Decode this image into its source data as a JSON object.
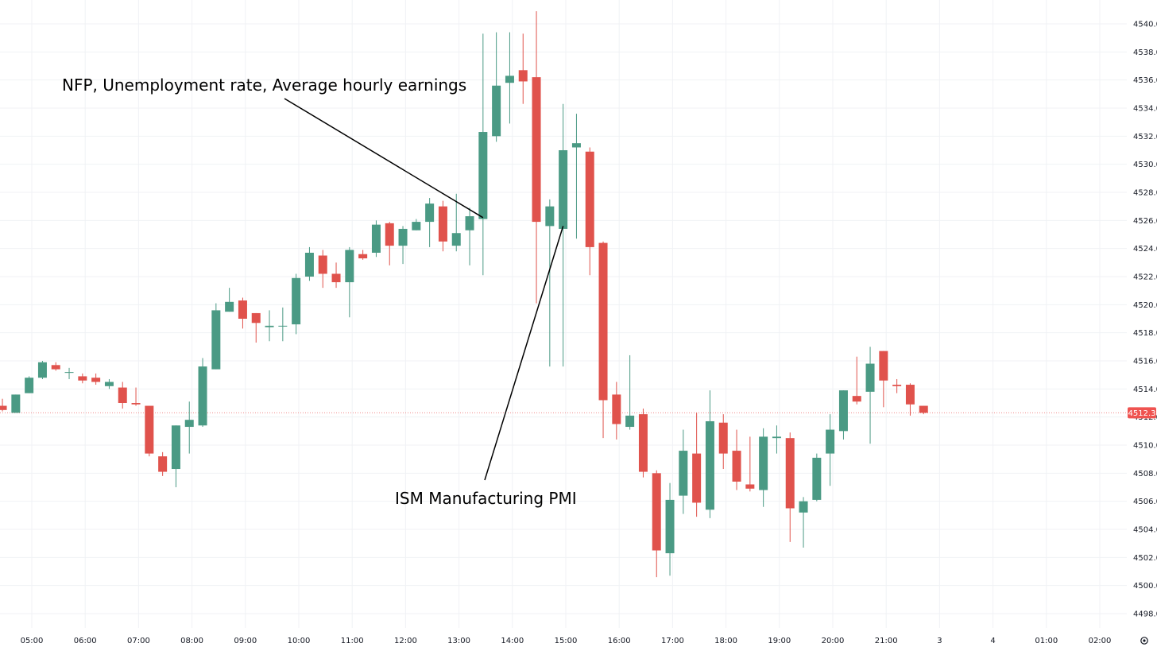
{
  "chart_data": {
    "type": "candlestick",
    "title": "",
    "xlabel": "",
    "ylabel": "",
    "ylim": [
      4497,
      4541
    ],
    "y_ticks": [
      "4498.0",
      "4500.0",
      "4502.0",
      "4504.0",
      "4506.0",
      "4508.0",
      "4510.0",
      "4512.0",
      "4514.0",
      "4516.0",
      "4518.0",
      "4520.0",
      "4522.0",
      "4524.0",
      "4526.0",
      "4528.0",
      "4530.0",
      "4532.0",
      "4534.0",
      "4536.0",
      "4538.0",
      "4540.0"
    ],
    "x_ticks": [
      {
        "label": "05:00",
        "hour": 5
      },
      {
        "label": "06:00",
        "hour": 6
      },
      {
        "label": "07:00",
        "hour": 7
      },
      {
        "label": "08:00",
        "hour": 8
      },
      {
        "label": "09:00",
        "hour": 9
      },
      {
        "label": "10:00",
        "hour": 10
      },
      {
        "label": "11:00",
        "hour": 11
      },
      {
        "label": "12:00",
        "hour": 12
      },
      {
        "label": "13:00",
        "hour": 13
      },
      {
        "label": "14:00",
        "hour": 14
      },
      {
        "label": "15:00",
        "hour": 15
      },
      {
        "label": "16:00",
        "hour": 16
      },
      {
        "label": "17:00",
        "hour": 17
      },
      {
        "label": "18:00",
        "hour": 18
      },
      {
        "label": "19:00",
        "hour": 19
      },
      {
        "label": "20:00",
        "hour": 20
      },
      {
        "label": "21:00",
        "hour": 21
      },
      {
        "label": "3",
        "hour": 22
      },
      {
        "label": "4",
        "hour": 23
      },
      {
        "label": "01:00",
        "hour": 24
      },
      {
        "label": "02:00",
        "hour": 25
      }
    ],
    "interval_hours": 0.25,
    "candles": [
      {
        "t": 4.45,
        "o": 4512.8,
        "h": 4513.3,
        "l": 4512.4,
        "c": 4512.5
      },
      {
        "t": 4.7,
        "o": 4512.3,
        "h": 4513.6,
        "l": 4512.3,
        "c": 4513.6
      },
      {
        "t": 4.95,
        "o": 4513.7,
        "h": 4514.9,
        "l": 4513.7,
        "c": 4514.8
      },
      {
        "t": 5.2,
        "o": 4514.8,
        "h": 4516.0,
        "l": 4514.7,
        "c": 4515.9
      },
      {
        "t": 5.45,
        "o": 4515.7,
        "h": 4515.9,
        "l": 4515.3,
        "c": 4515.4
      },
      {
        "t": 5.7,
        "o": 4515.2,
        "h": 4515.5,
        "l": 4514.7,
        "c": 4515.2
      },
      {
        "t": 5.95,
        "o": 4514.9,
        "h": 4515.1,
        "l": 4514.4,
        "c": 4514.6
      },
      {
        "t": 6.2,
        "o": 4514.8,
        "h": 4515.1,
        "l": 4514.3,
        "c": 4514.5
      },
      {
        "t": 6.45,
        "o": 4514.2,
        "h": 4514.7,
        "l": 4514.0,
        "c": 4514.5
      },
      {
        "t": 6.7,
        "o": 4514.1,
        "h": 4514.5,
        "l": 4512.6,
        "c": 4513.0
      },
      {
        "t": 6.95,
        "o": 4513.0,
        "h": 4514.1,
        "l": 4512.8,
        "c": 4512.9
      },
      {
        "t": 7.2,
        "o": 4512.8,
        "h": 4512.8,
        "l": 4509.2,
        "c": 4509.4
      },
      {
        "t": 7.45,
        "o": 4509.2,
        "h": 4509.5,
        "l": 4507.8,
        "c": 4508.1
      },
      {
        "t": 7.7,
        "o": 4508.3,
        "h": 4511.4,
        "l": 4507.0,
        "c": 4511.4
      },
      {
        "t": 7.95,
        "o": 4511.3,
        "h": 4513.1,
        "l": 4509.4,
        "c": 4511.8
      },
      {
        "t": 8.2,
        "o": 4511.4,
        "h": 4516.2,
        "l": 4511.3,
        "c": 4515.6
      },
      {
        "t": 8.45,
        "o": 4515.4,
        "h": 4520.1,
        "l": 4515.4,
        "c": 4519.6
      },
      {
        "t": 8.7,
        "o": 4519.5,
        "h": 4521.2,
        "l": 4519.5,
        "c": 4520.2
      },
      {
        "t": 8.95,
        "o": 4520.3,
        "h": 4520.5,
        "l": 4518.3,
        "c": 4519.0
      },
      {
        "t": 9.2,
        "o": 4519.4,
        "h": 4519.4,
        "l": 4517.3,
        "c": 4518.7
      },
      {
        "t": 9.45,
        "o": 4518.4,
        "h": 4519.6,
        "l": 4517.4,
        "c": 4518.5
      },
      {
        "t": 9.7,
        "o": 4518.5,
        "h": 4519.8,
        "l": 4517.4,
        "c": 4518.5
      },
      {
        "t": 9.95,
        "o": 4518.6,
        "h": 4522.2,
        "l": 4517.9,
        "c": 4521.9
      },
      {
        "t": 10.2,
        "o": 4522.0,
        "h": 4524.1,
        "l": 4521.7,
        "c": 4523.7
      },
      {
        "t": 10.45,
        "o": 4523.5,
        "h": 4523.9,
        "l": 4521.2,
        "c": 4522.2
      },
      {
        "t": 10.7,
        "o": 4522.2,
        "h": 4523.0,
        "l": 4521.2,
        "c": 4521.6
      },
      {
        "t": 10.95,
        "o": 4521.6,
        "h": 4524.1,
        "l": 4519.1,
        "c": 4523.9
      },
      {
        "t": 11.2,
        "o": 4523.6,
        "h": 4523.9,
        "l": 4523.2,
        "c": 4523.3
      },
      {
        "t": 11.45,
        "o": 4523.7,
        "h": 4526.0,
        "l": 4523.4,
        "c": 4525.7
      },
      {
        "t": 11.7,
        "o": 4525.8,
        "h": 4525.9,
        "l": 4522.8,
        "c": 4524.2
      },
      {
        "t": 11.95,
        "o": 4524.2,
        "h": 4525.6,
        "l": 4522.9,
        "c": 4525.4
      },
      {
        "t": 12.2,
        "o": 4525.3,
        "h": 4526.1,
        "l": 4525.3,
        "c": 4525.9
      },
      {
        "t": 12.45,
        "o": 4525.9,
        "h": 4527.6,
        "l": 4524.1,
        "c": 4527.2
      },
      {
        "t": 12.7,
        "o": 4527.0,
        "h": 4527.4,
        "l": 4523.8,
        "c": 4524.5
      },
      {
        "t": 12.95,
        "o": 4524.2,
        "h": 4527.9,
        "l": 4523.8,
        "c": 4525.1
      },
      {
        "t": 13.2,
        "o": 4525.3,
        "h": 4526.9,
        "l": 4522.8,
        "c": 4526.3
      },
      {
        "t": 13.45,
        "o": 4526.1,
        "h": 4539.3,
        "l": 4522.1,
        "c": 4532.3
      },
      {
        "t": 13.7,
        "o": 4532.0,
        "h": 4539.4,
        "l": 4531.6,
        "c": 4535.6
      },
      {
        "t": 13.95,
        "o": 4535.8,
        "h": 4539.4,
        "l": 4532.9,
        "c": 4536.3
      },
      {
        "t": 14.2,
        "o": 4536.7,
        "h": 4539.3,
        "l": 4534.3,
        "c": 4535.9
      },
      {
        "t": 14.45,
        "o": 4536.2,
        "h": 4540.9,
        "l": 4520.1,
        "c": 4525.9
      },
      {
        "t": 14.7,
        "o": 4525.6,
        "h": 4527.5,
        "l": 4515.6,
        "c": 4527.0
      },
      {
        "t": 14.95,
        "o": 4525.4,
        "h": 4534.3,
        "l": 4515.6,
        "c": 4531.0
      },
      {
        "t": 15.2,
        "o": 4531.2,
        "h": 4533.6,
        "l": 4524.7,
        "c": 4531.5
      },
      {
        "t": 15.45,
        "o": 4530.9,
        "h": 4531.2,
        "l": 4522.1,
        "c": 4524.1
      },
      {
        "t": 15.7,
        "o": 4524.4,
        "h": 4524.5,
        "l": 4510.5,
        "c": 4513.2
      },
      {
        "t": 15.95,
        "o": 4513.6,
        "h": 4514.5,
        "l": 4510.4,
        "c": 4511.5
      },
      {
        "t": 16.2,
        "o": 4511.3,
        "h": 4516.4,
        "l": 4511.1,
        "c": 4512.1
      },
      {
        "t": 16.45,
        "o": 4512.2,
        "h": 4512.6,
        "l": 4507.7,
        "c": 4508.1
      },
      {
        "t": 16.7,
        "o": 4508.0,
        "h": 4508.2,
        "l": 4500.6,
        "c": 4502.5
      },
      {
        "t": 16.95,
        "o": 4502.3,
        "h": 4507.3,
        "l": 4500.7,
        "c": 4506.1
      },
      {
        "t": 17.2,
        "o": 4506.4,
        "h": 4511.1,
        "l": 4505.1,
        "c": 4509.6
      },
      {
        "t": 17.45,
        "o": 4509.4,
        "h": 4512.3,
        "l": 4504.9,
        "c": 4505.9
      },
      {
        "t": 17.7,
        "o": 4505.4,
        "h": 4513.9,
        "l": 4504.8,
        "c": 4511.7
      },
      {
        "t": 17.95,
        "o": 4511.6,
        "h": 4512.2,
        "l": 4508.3,
        "c": 4509.4
      },
      {
        "t": 18.2,
        "o": 4509.6,
        "h": 4511.1,
        "l": 4506.8,
        "c": 4507.4
      },
      {
        "t": 18.45,
        "o": 4507.2,
        "h": 4510.6,
        "l": 4506.7,
        "c": 4506.9
      },
      {
        "t": 18.7,
        "o": 4506.8,
        "h": 4511.2,
        "l": 4505.6,
        "c": 4510.6
      },
      {
        "t": 18.95,
        "o": 4510.5,
        "h": 4511.4,
        "l": 4509.4,
        "c": 4510.6
      },
      {
        "t": 19.2,
        "o": 4510.5,
        "h": 4510.9,
        "l": 4503.1,
        "c": 4505.5
      },
      {
        "t": 19.45,
        "o": 4505.2,
        "h": 4506.3,
        "l": 4502.7,
        "c": 4506.0
      },
      {
        "t": 19.7,
        "o": 4506.1,
        "h": 4509.4,
        "l": 4506.0,
        "c": 4509.1
      },
      {
        "t": 19.95,
        "o": 4509.4,
        "h": 4512.2,
        "l": 4507.1,
        "c": 4511.1
      },
      {
        "t": 20.2,
        "o": 4511.0,
        "h": 4513.9,
        "l": 4510.4,
        "c": 4513.9
      },
      {
        "t": 20.45,
        "o": 4513.5,
        "h": 4516.3,
        "l": 4512.9,
        "c": 4513.1
      },
      {
        "t": 20.7,
        "o": 4513.8,
        "h": 4517.0,
        "l": 4510.1,
        "c": 4515.8
      },
      {
        "t": 20.95,
        "o": 4516.7,
        "h": 4516.7,
        "l": 4512.7,
        "c": 4514.6
      },
      {
        "t": 21.2,
        "o": 4514.3,
        "h": 4514.7,
        "l": 4513.7,
        "c": 4514.2
      },
      {
        "t": 21.45,
        "o": 4514.3,
        "h": 4514.4,
        "l": 4512.1,
        "c": 4512.9
      },
      {
        "t": 21.7,
        "o": 4512.8,
        "h": 4512.8,
        "l": 4512.2,
        "c": 4512.3
      }
    ],
    "last_price": 4512.3,
    "last_price_label": "4512.3",
    "annotations": [
      {
        "text": "NFP, Unemployment rate, Average hourly earnings",
        "point_t": 13.45,
        "point_price": 4526.2
      },
      {
        "text": "ISM Manufacturing PMI",
        "point_t": 14.95,
        "point_price": 4525.6
      }
    ],
    "grid": true,
    "colors": {
      "up": "#4a9a84",
      "down": "#e0524c",
      "grid": "#f0f2f5",
      "price_line": "#f08a8a",
      "price_badge": "#ef5350",
      "axis_text": "#131722"
    }
  },
  "ui": {
    "settings_icon": "gear-icon"
  }
}
